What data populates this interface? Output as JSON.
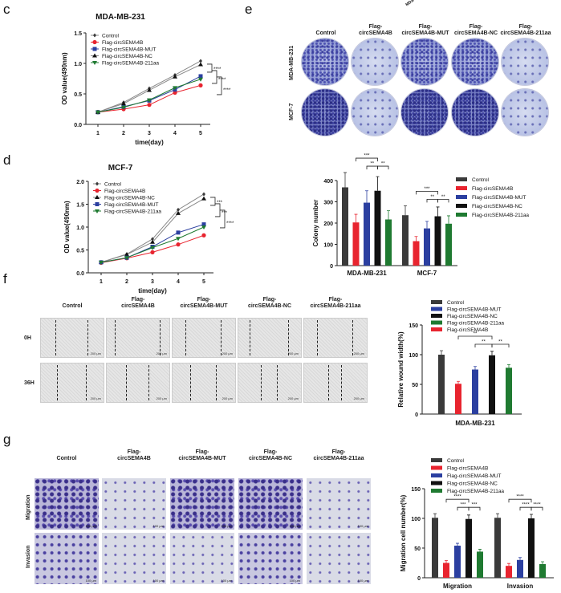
{
  "panels": {
    "c": "c",
    "d": "d",
    "e": "e",
    "f": "f",
    "g": "g"
  },
  "colors": {
    "Control": "#3a3a3a",
    "Flag-circSEMA4B": "#e8242f",
    "Flag-circSEMA4B-MUT": "#2b3fa0",
    "Flag-circSEMA4B-NC": "#111111",
    "Flag-circSEMA4B-211aa": "#1f7a31"
  },
  "top_fragment": "MDA-",
  "headers": {
    "control": "Control",
    "c4b": [
      "Flag-",
      "circSEMA4B"
    ],
    "mut": [
      "Flag-",
      "circSEMA4B-MUT"
    ],
    "nc": [
      "Flag-",
      "circSEMA4B-NC"
    ],
    "aa": [
      "Flag-",
      "circSEMA4B-211aa"
    ]
  },
  "panel_e": {
    "rows": [
      "MDA-MB-231",
      "MCF-7"
    ]
  },
  "panel_f": {
    "rows": [
      "0H",
      "36H"
    ],
    "scale": "200 μm"
  },
  "panel_g": {
    "rows": [
      "Migration",
      "Invasion"
    ],
    "scale": "100 μm"
  },
  "chart_data": [
    {
      "type": "line",
      "title": "MDA-MB-231",
      "xlabel": "time(day)",
      "ylabel": "OD value(490nm)",
      "x": [
        1,
        2,
        3,
        4,
        5
      ],
      "yticks": [
        "0.0",
        "0.5",
        "1.0",
        "1.5"
      ],
      "ylim": [
        0,
        1.5
      ],
      "series": [
        {
          "name": "Control",
          "values": [
            0.2,
            0.36,
            0.59,
            0.81,
            1.04
          ]
        },
        {
          "name": "Flag-circSEMA4B",
          "values": [
            0.2,
            0.25,
            0.32,
            0.52,
            0.64
          ]
        },
        {
          "name": "Flag-circSEMA4B-MUT",
          "values": [
            0.2,
            0.29,
            0.39,
            0.57,
            0.79
          ]
        },
        {
          "name": "Flag-circSEMA4B-NC",
          "values": [
            0.2,
            0.34,
            0.56,
            0.78,
            0.98
          ]
        },
        {
          "name": "Flag-circSEMA4B-211aa",
          "values": [
            0.2,
            0.28,
            0.4,
            0.6,
            0.74
          ]
        }
      ],
      "significance": [
        "****",
        "****",
        "****"
      ]
    },
    {
      "type": "line",
      "title": "MCF-7",
      "xlabel": "time(day)",
      "ylabel": "OD value(490nm)",
      "x": [
        1,
        2,
        3,
        4,
        5
      ],
      "yticks": [
        "0.0",
        "0.5",
        "1.0",
        "1.5",
        "2.0"
      ],
      "ylim": [
        0,
        2.0
      ],
      "series": [
        {
          "name": "Control",
          "values": [
            0.23,
            0.41,
            0.74,
            1.38,
            1.72
          ]
        },
        {
          "name": "Flag-circSEMA4B",
          "values": [
            0.22,
            0.32,
            0.45,
            0.62,
            0.82
          ]
        },
        {
          "name": "Flag-circSEMA4B-NC",
          "values": [
            0.23,
            0.4,
            0.67,
            1.3,
            1.62
          ]
        },
        {
          "name": "Flag-circSEMA4B-MUT",
          "values": [
            0.23,
            0.33,
            0.57,
            0.88,
            1.06
          ]
        },
        {
          "name": "Flag-circSEMA4B-211aa",
          "values": [
            0.23,
            0.33,
            0.55,
            0.75,
            1.0
          ]
        }
      ],
      "significance": [
        "***",
        "***",
        "****"
      ]
    },
    {
      "type": "bar",
      "ylabel": "Colony number",
      "categories": [
        "MDA-MB-231",
        "MCF-7"
      ],
      "yticks": [
        "0",
        "100",
        "200",
        "300",
        "400"
      ],
      "ylim": [
        0,
        400
      ],
      "legend": [
        "Control",
        "Flag-circSEMA4B",
        "Flag-circSEMA4B-MUT",
        "Flag-circSEMA4B-NC",
        "Flag-circSEMA4B-211aa"
      ],
      "series": [
        {
          "name": "Control",
          "values": [
            368,
            237
          ]
        },
        {
          "name": "Flag-circSEMA4B",
          "values": [
            203,
            115
          ]
        },
        {
          "name": "Flag-circSEMA4B-MUT",
          "values": [
            296,
            175
          ]
        },
        {
          "name": "Flag-circSEMA4B-NC",
          "values": [
            352,
            232
          ]
        },
        {
          "name": "Flag-circSEMA4B-211aa",
          "values": [
            217,
            197
          ]
        }
      ],
      "significance": [
        {
          "pair": [
            1,
            3
          ],
          "label": "***"
        },
        {
          "pair": [
            2,
            3
          ],
          "label": "**"
        },
        {
          "pair": [
            3,
            4
          ],
          "label": "**"
        }
      ]
    },
    {
      "type": "bar",
      "ylabel": "Relative wound width(%)",
      "categories": [
        "MDA-MB-231"
      ],
      "yticks": [
        "0",
        "50",
        "100",
        "150"
      ],
      "ylim": [
        0,
        150
      ],
      "legend": [
        "Control",
        "Flag-circSEMA4B-MUT",
        "Flag-circSEMA4B-NC",
        "Flag-circSEMA4B-211aa",
        "Flag-circSEMA4B"
      ],
      "series": [
        {
          "name": "Control",
          "values": [
            100
          ]
        },
        {
          "name": "Flag-circSEMA4B",
          "values": [
            51
          ]
        },
        {
          "name": "Flag-circSEMA4B-MUT",
          "values": [
            75
          ]
        },
        {
          "name": "Flag-circSEMA4B-NC",
          "values": [
            99
          ]
        },
        {
          "name": "Flag-circSEMA4B-211aa",
          "values": [
            78
          ]
        }
      ],
      "significance": [
        {
          "pair": [
            1,
            3
          ],
          "label": "**"
        },
        {
          "pair": [
            2,
            3
          ],
          "label": "**"
        },
        {
          "pair": [
            3,
            4
          ],
          "label": "**"
        }
      ]
    },
    {
      "type": "bar",
      "ylabel": "Migration cell number(%)",
      "categories": [
        "Migration",
        "Invasion"
      ],
      "yticks": [
        "0",
        "50",
        "100",
        "150"
      ],
      "ylim": [
        0,
        150
      ],
      "legend": [
        "Control",
        "Flag-circSEMA4B",
        "Flag-circSEMA4B-MUT",
        "Flag-circSEMA4B-NC",
        "Flag-circSEMA4B-211aa"
      ],
      "series": [
        {
          "name": "Control",
          "values": [
            101,
            101
          ]
        },
        {
          "name": "Flag-circSEMA4B",
          "values": [
            25,
            20
          ]
        },
        {
          "name": "Flag-circSEMA4B-MUT",
          "values": [
            54,
            30
          ]
        },
        {
          "name": "Flag-circSEMA4B-NC",
          "values": [
            99,
            100
          ]
        },
        {
          "name": "Flag-circSEMA4B-211aa",
          "values": [
            44,
            23
          ]
        }
      ],
      "significance": [
        [
          {
            "pair": [
              1,
              3
            ],
            "label": "****"
          },
          {
            "pair": [
              2,
              3
            ],
            "label": "***"
          },
          {
            "pair": [
              3,
              4
            ],
            "label": "***"
          }
        ],
        [
          {
            "pair": [
              1,
              3
            ],
            "label": "****"
          },
          {
            "pair": [
              2,
              3
            ],
            "label": "****"
          },
          {
            "pair": [
              3,
              4
            ],
            "label": "****"
          }
        ]
      ]
    }
  ]
}
